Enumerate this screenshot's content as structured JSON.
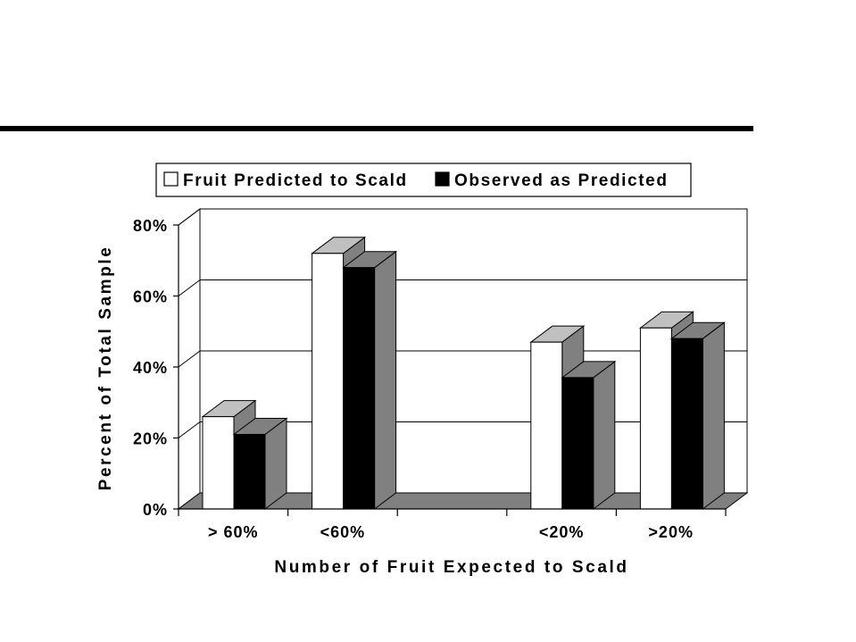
{
  "chart_data": {
    "type": "bar",
    "style": "3d-clustered",
    "categories": [
      "> 60%",
      "<60%",
      "",
      "<20%",
      ">20%"
    ],
    "series": [
      {
        "name": "Fruit Predicted to Scald",
        "color": "#ffffff",
        "values": [
          26,
          72,
          null,
          47,
          51
        ]
      },
      {
        "name": "Observed as Predicted",
        "color": "#000000",
        "values": [
          21,
          68,
          null,
          37,
          48
        ]
      }
    ],
    "xlabel": "Number of Fruit Expected to Scald",
    "ylabel": "Percent of Total Sample",
    "ylim": [
      0,
      80
    ],
    "yticks": [
      0,
      20,
      40,
      60,
      80
    ],
    "ytick_labels": [
      "0%",
      "20%",
      "40%",
      "60%",
      "80%"
    ],
    "grid": true,
    "legend": "top-center",
    "colors": {
      "floor": "#808080",
      "side_shade": "#808080",
      "top_shade": "#c0c0c0",
      "grid": "#000000"
    }
  }
}
